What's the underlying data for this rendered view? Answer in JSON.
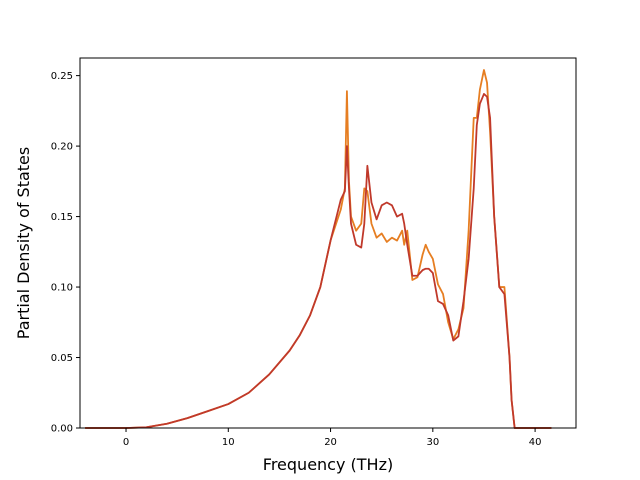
{
  "chart_data": {
    "type": "line",
    "xlabel": "Frequency (THz)",
    "ylabel": "Partial Density of States",
    "xlim": [
      -4.5,
      44.0
    ],
    "ylim": [
      0.0,
      0.2625
    ],
    "xticks": [
      0,
      10,
      20,
      30,
      40
    ],
    "yticks": [
      0.0,
      0.05,
      0.1,
      0.15,
      0.2,
      0.25
    ],
    "xtick_labels": [
      "0",
      "10",
      "20",
      "30",
      "40"
    ],
    "ytick_labels": [
      "0.00",
      "0.05",
      "0.10",
      "0.15",
      "0.20",
      "0.25"
    ],
    "grid": false,
    "series": [
      {
        "color": "#e67e22",
        "x": [
          -4,
          0,
          2,
          4,
          6,
          8,
          10,
          12,
          14,
          16,
          17,
          18,
          19,
          20,
          21,
          21.4,
          21.6,
          21.8,
          22,
          22.5,
          23,
          23.3,
          23.6,
          24,
          24.5,
          25,
          25.5,
          26,
          26.5,
          27,
          27.2,
          27.5,
          28,
          28.5,
          29,
          29.3,
          29.6,
          30,
          30.5,
          31,
          31.5,
          32,
          32.5,
          33,
          33.5,
          34,
          34.3,
          34.6,
          35,
          35.3,
          35.6,
          36,
          36.5,
          37,
          37.5,
          37.7,
          38,
          38.5,
          40,
          41.6
        ],
        "y": [
          0.0,
          0.0,
          0.0005,
          0.003,
          0.007,
          0.012,
          0.017,
          0.025,
          0.038,
          0.055,
          0.066,
          0.08,
          0.1,
          0.133,
          0.155,
          0.17,
          0.239,
          0.175,
          0.15,
          0.14,
          0.145,
          0.17,
          0.168,
          0.145,
          0.135,
          0.138,
          0.132,
          0.135,
          0.133,
          0.14,
          0.13,
          0.14,
          0.105,
          0.107,
          0.123,
          0.13,
          0.125,
          0.12,
          0.102,
          0.095,
          0.075,
          0.063,
          0.07,
          0.085,
          0.14,
          0.22,
          0.22,
          0.24,
          0.254,
          0.245,
          0.21,
          0.15,
          0.1,
          0.1,
          0.05,
          0.02,
          0.0,
          0.0,
          0.0,
          0.0
        ]
      },
      {
        "color": "#c0392b",
        "x": [
          -4,
          0,
          2,
          4,
          6,
          8,
          10,
          12,
          14,
          16,
          17,
          18,
          19,
          20,
          21,
          21.4,
          21.6,
          21.8,
          22,
          22.5,
          23,
          23.3,
          23.6,
          24,
          24.5,
          25,
          25.5,
          26,
          26.5,
          27,
          27.2,
          27.5,
          28,
          28.5,
          29,
          29.3,
          29.6,
          30,
          30.5,
          31,
          31.5,
          32,
          32.5,
          33,
          33.5,
          34,
          34.3,
          34.6,
          35,
          35.3,
          35.6,
          36,
          36.5,
          37,
          37.5,
          37.7,
          38,
          38.5,
          40,
          41.6
        ],
        "y": [
          0.0,
          0.0,
          0.0005,
          0.003,
          0.007,
          0.012,
          0.017,
          0.025,
          0.038,
          0.055,
          0.066,
          0.08,
          0.1,
          0.133,
          0.162,
          0.168,
          0.2,
          0.17,
          0.145,
          0.13,
          0.128,
          0.145,
          0.186,
          0.16,
          0.148,
          0.158,
          0.16,
          0.158,
          0.15,
          0.152,
          0.145,
          0.13,
          0.108,
          0.108,
          0.112,
          0.113,
          0.113,
          0.11,
          0.09,
          0.088,
          0.08,
          0.062,
          0.065,
          0.09,
          0.12,
          0.17,
          0.215,
          0.23,
          0.237,
          0.235,
          0.22,
          0.15,
          0.1,
          0.095,
          0.05,
          0.02,
          0.0,
          0.0,
          0.0,
          0.0
        ]
      }
    ]
  }
}
